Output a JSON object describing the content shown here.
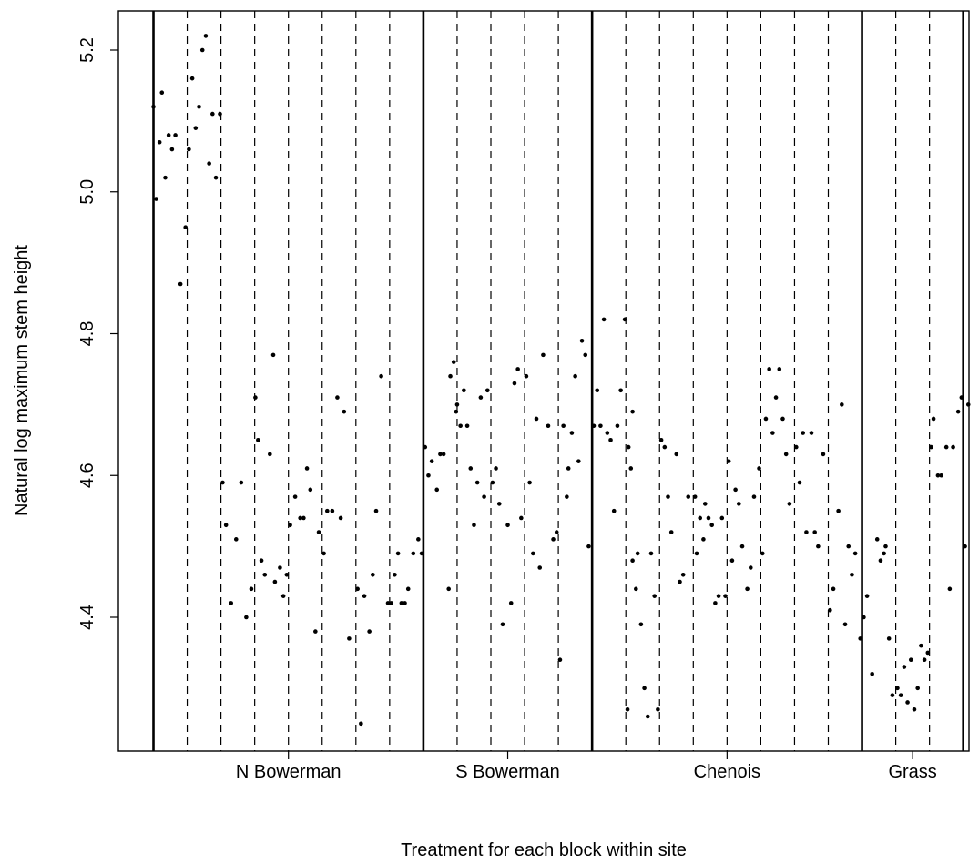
{
  "chart_data": {
    "type": "scatter",
    "title": "",
    "xlabel": "Treatment for each block within site",
    "ylabel": "Natural log maximum stem height",
    "ylim": [
      4.19,
      5.26
    ],
    "yticks": [
      "4.4",
      "4.6",
      "4.8",
      "5.0",
      "5.2"
    ],
    "grid": false,
    "legend": "none",
    "sites": [
      {
        "name": "N Bowerman",
        "blocks": 8
      },
      {
        "name": "S Bowerman",
        "blocks": 5
      },
      {
        "name": "Chenois",
        "blocks": 8
      },
      {
        "name": "Grass",
        "blocks": 3
      }
    ],
    "points": [
      [
        0.0,
        5.12
      ],
      [
        0.08,
        4.99
      ],
      [
        0.18,
        5.07
      ],
      [
        0.25,
        5.14
      ],
      [
        0.35,
        5.02
      ],
      [
        0.45,
        5.08
      ],
      [
        0.55,
        5.06
      ],
      [
        0.65,
        5.08
      ],
      [
        0.8,
        4.87
      ],
      [
        0.95,
        4.95
      ],
      [
        1.05,
        5.06
      ],
      [
        1.15,
        5.16
      ],
      [
        1.25,
        5.09
      ],
      [
        1.35,
        5.12
      ],
      [
        1.45,
        5.2
      ],
      [
        1.55,
        5.22
      ],
      [
        1.65,
        5.04
      ],
      [
        1.75,
        5.11
      ],
      [
        1.85,
        5.02
      ],
      [
        1.97,
        5.11
      ],
      [
        2.05,
        4.59
      ],
      [
        2.15,
        4.53
      ],
      [
        2.3,
        4.42
      ],
      [
        2.45,
        4.51
      ],
      [
        2.6,
        4.59
      ],
      [
        2.75,
        4.4
      ],
      [
        2.9,
        4.44
      ],
      [
        3.02,
        4.71
      ],
      [
        3.1,
        4.65
      ],
      [
        3.2,
        4.48
      ],
      [
        3.3,
        4.46
      ],
      [
        3.45,
        4.63
      ],
      [
        3.55,
        4.77
      ],
      [
        3.6,
        4.45
      ],
      [
        3.75,
        4.47
      ],
      [
        3.85,
        4.43
      ],
      [
        3.95,
        4.46
      ],
      [
        4.05,
        4.53
      ],
      [
        4.2,
        4.57
      ],
      [
        4.35,
        4.54
      ],
      [
        4.45,
        4.54
      ],
      [
        4.55,
        4.61
      ],
      [
        4.65,
        4.58
      ],
      [
        4.8,
        4.38
      ],
      [
        4.9,
        4.52
      ],
      [
        5.05,
        4.49
      ],
      [
        5.15,
        4.55
      ],
      [
        5.3,
        4.55
      ],
      [
        5.45,
        4.71
      ],
      [
        5.55,
        4.54
      ],
      [
        5.65,
        4.69
      ],
      [
        5.8,
        4.37
      ],
      [
        6.05,
        4.44
      ],
      [
        6.15,
        4.25
      ],
      [
        6.25,
        4.43
      ],
      [
        6.4,
        4.38
      ],
      [
        6.5,
        4.46
      ],
      [
        6.6,
        4.55
      ],
      [
        6.75,
        4.74
      ],
      [
        6.95,
        4.42
      ],
      [
        7.05,
        4.42
      ],
      [
        7.15,
        4.46
      ],
      [
        7.25,
        4.49
      ],
      [
        7.35,
        4.42
      ],
      [
        7.45,
        4.42
      ],
      [
        7.55,
        4.44
      ],
      [
        7.7,
        4.49
      ],
      [
        7.85,
        4.51
      ],
      [
        7.95,
        4.49
      ],
      [
        8.05,
        4.64
      ],
      [
        8.15,
        4.6
      ],
      [
        8.25,
        4.62
      ],
      [
        8.4,
        4.58
      ],
      [
        8.5,
        4.63
      ],
      [
        8.6,
        4.63
      ],
      [
        8.75,
        4.44
      ],
      [
        8.8,
        4.74
      ],
      [
        8.9,
        4.76
      ],
      [
        9.0,
        4.7
      ],
      [
        9.1,
        4.67
      ],
      [
        8.97,
        4.69
      ],
      [
        9.2,
        4.72
      ],
      [
        9.3,
        4.67
      ],
      [
        9.4,
        4.61
      ],
      [
        9.5,
        4.53
      ],
      [
        9.6,
        4.59
      ],
      [
        9.7,
        4.71
      ],
      [
        9.8,
        4.57
      ],
      [
        9.9,
        4.72
      ],
      [
        10.05,
        4.59
      ],
      [
        10.15,
        4.61
      ],
      [
        10.25,
        4.56
      ],
      [
        10.35,
        4.39
      ],
      [
        10.5,
        4.53
      ],
      [
        10.6,
        4.42
      ],
      [
        10.7,
        4.73
      ],
      [
        10.8,
        4.75
      ],
      [
        10.9,
        4.54
      ],
      [
        11.05,
        4.74
      ],
      [
        11.15,
        4.59
      ],
      [
        11.25,
        4.49
      ],
      [
        11.35,
        4.68
      ],
      [
        11.45,
        4.47
      ],
      [
        11.55,
        4.77
      ],
      [
        11.7,
        4.67
      ],
      [
        11.85,
        4.51
      ],
      [
        11.95,
        4.52
      ],
      [
        12.05,
        4.34
      ],
      [
        12.15,
        4.67
      ],
      [
        12.25,
        4.57
      ],
      [
        12.3,
        4.61
      ],
      [
        12.4,
        4.66
      ],
      [
        12.5,
        4.74
      ],
      [
        12.6,
        4.62
      ],
      [
        12.7,
        4.79
      ],
      [
        12.8,
        4.77
      ],
      [
        12.9,
        4.5
      ],
      [
        13.05,
        4.67
      ],
      [
        13.15,
        4.72
      ],
      [
        13.25,
        4.67
      ],
      [
        13.35,
        4.82
      ],
      [
        13.45,
        4.66
      ],
      [
        13.55,
        4.65
      ],
      [
        13.65,
        4.55
      ],
      [
        13.75,
        4.67
      ],
      [
        13.85,
        4.72
      ],
      [
        13.97,
        4.82
      ],
      [
        14.08,
        4.64
      ],
      [
        14.15,
        4.61
      ],
      [
        14.2,
        4.69
      ],
      [
        14.3,
        4.44
      ],
      [
        14.05,
        4.27
      ],
      [
        14.2,
        4.48
      ],
      [
        14.35,
        4.49
      ],
      [
        14.45,
        4.39
      ],
      [
        14.55,
        4.3
      ],
      [
        14.65,
        4.26
      ],
      [
        14.75,
        4.49
      ],
      [
        14.85,
        4.43
      ],
      [
        14.95,
        4.27
      ],
      [
        15.05,
        4.65
      ],
      [
        15.15,
        4.64
      ],
      [
        15.25,
        4.57
      ],
      [
        15.35,
        4.52
      ],
      [
        15.5,
        4.63
      ],
      [
        15.6,
        4.45
      ],
      [
        15.7,
        4.46
      ],
      [
        15.85,
        4.57
      ],
      [
        16.05,
        4.57
      ],
      [
        16.1,
        4.49
      ],
      [
        16.2,
        4.54
      ],
      [
        16.3,
        4.51
      ],
      [
        16.35,
        4.56
      ],
      [
        16.45,
        4.54
      ],
      [
        16.55,
        4.53
      ],
      [
        16.65,
        4.42
      ],
      [
        16.75,
        4.43
      ],
      [
        16.85,
        4.54
      ],
      [
        16.95,
        4.43
      ],
      [
        17.05,
        4.62
      ],
      [
        17.15,
        4.48
      ],
      [
        17.25,
        4.58
      ],
      [
        17.35,
        4.56
      ],
      [
        17.45,
        4.5
      ],
      [
        17.6,
        4.44
      ],
      [
        17.7,
        4.47
      ],
      [
        17.8,
        4.57
      ],
      [
        17.95,
        4.61
      ],
      [
        18.05,
        4.49
      ],
      [
        18.15,
        4.68
      ],
      [
        18.25,
        4.75
      ],
      [
        18.35,
        4.66
      ],
      [
        18.45,
        4.71
      ],
      [
        18.55,
        4.75
      ],
      [
        18.65,
        4.68
      ],
      [
        18.75,
        4.63
      ],
      [
        18.85,
        4.56
      ],
      [
        19.05,
        4.64
      ],
      [
        19.15,
        4.59
      ],
      [
        19.25,
        4.66
      ],
      [
        19.35,
        4.52
      ],
      [
        19.5,
        4.66
      ],
      [
        19.6,
        4.52
      ],
      [
        19.7,
        4.5
      ],
      [
        19.85,
        4.63
      ],
      [
        20.05,
        4.41
      ],
      [
        20.15,
        4.44
      ],
      [
        20.3,
        4.55
      ],
      [
        20.4,
        4.7
      ],
      [
        20.5,
        4.39
      ],
      [
        20.6,
        4.5
      ],
      [
        20.7,
        4.46
      ],
      [
        20.8,
        4.49
      ],
      [
        20.95,
        4.37
      ],
      [
        21.05,
        4.4
      ],
      [
        21.15,
        4.43
      ],
      [
        21.3,
        4.32
      ],
      [
        21.45,
        4.51
      ],
      [
        21.55,
        4.48
      ],
      [
        21.65,
        4.49
      ],
      [
        21.7,
        4.5
      ],
      [
        21.8,
        4.37
      ],
      [
        21.9,
        4.29
      ],
      [
        22.05,
        4.3
      ],
      [
        22.15,
        4.29
      ],
      [
        22.25,
        4.33
      ],
      [
        22.35,
        4.28
      ],
      [
        22.45,
        4.34
      ],
      [
        22.55,
        4.27
      ],
      [
        22.65,
        4.3
      ],
      [
        22.75,
        4.36
      ],
      [
        22.85,
        4.34
      ],
      [
        22.95,
        4.35
      ],
      [
        23.05,
        4.64
      ],
      [
        23.12,
        4.68
      ],
      [
        23.25,
        4.6
      ],
      [
        23.35,
        4.6
      ],
      [
        23.5,
        4.64
      ],
      [
        23.6,
        4.44
      ],
      [
        23.7,
        4.64
      ],
      [
        23.85,
        4.69
      ],
      [
        23.95,
        4.71
      ],
      [
        24.05,
        4.5
      ],
      [
        24.15,
        4.7
      ],
      [
        24.25,
        4.79
      ],
      [
        24.35,
        4.43
      ],
      [
        24.45,
        4.65
      ],
      [
        24.55,
        4.47
      ],
      [
        24.65,
        4.72
      ],
      [
        24.75,
        4.53
      ],
      [
        24.85,
        4.57
      ],
      [
        24.95,
        4.59
      ],
      [
        25.05,
        4.62
      ],
      [
        25.15,
        4.7
      ],
      [
        25.25,
        4.65
      ],
      [
        25.35,
        4.41
      ],
      [
        25.45,
        4.41
      ],
      [
        25.55,
        4.49
      ],
      [
        25.65,
        4.56
      ],
      [
        25.75,
        4.4
      ],
      [
        25.85,
        4.45
      ],
      [
        25.9,
        4.46
      ],
      [
        26.0,
        4.41
      ],
      [
        26.1,
        4.37
      ]
    ]
  }
}
